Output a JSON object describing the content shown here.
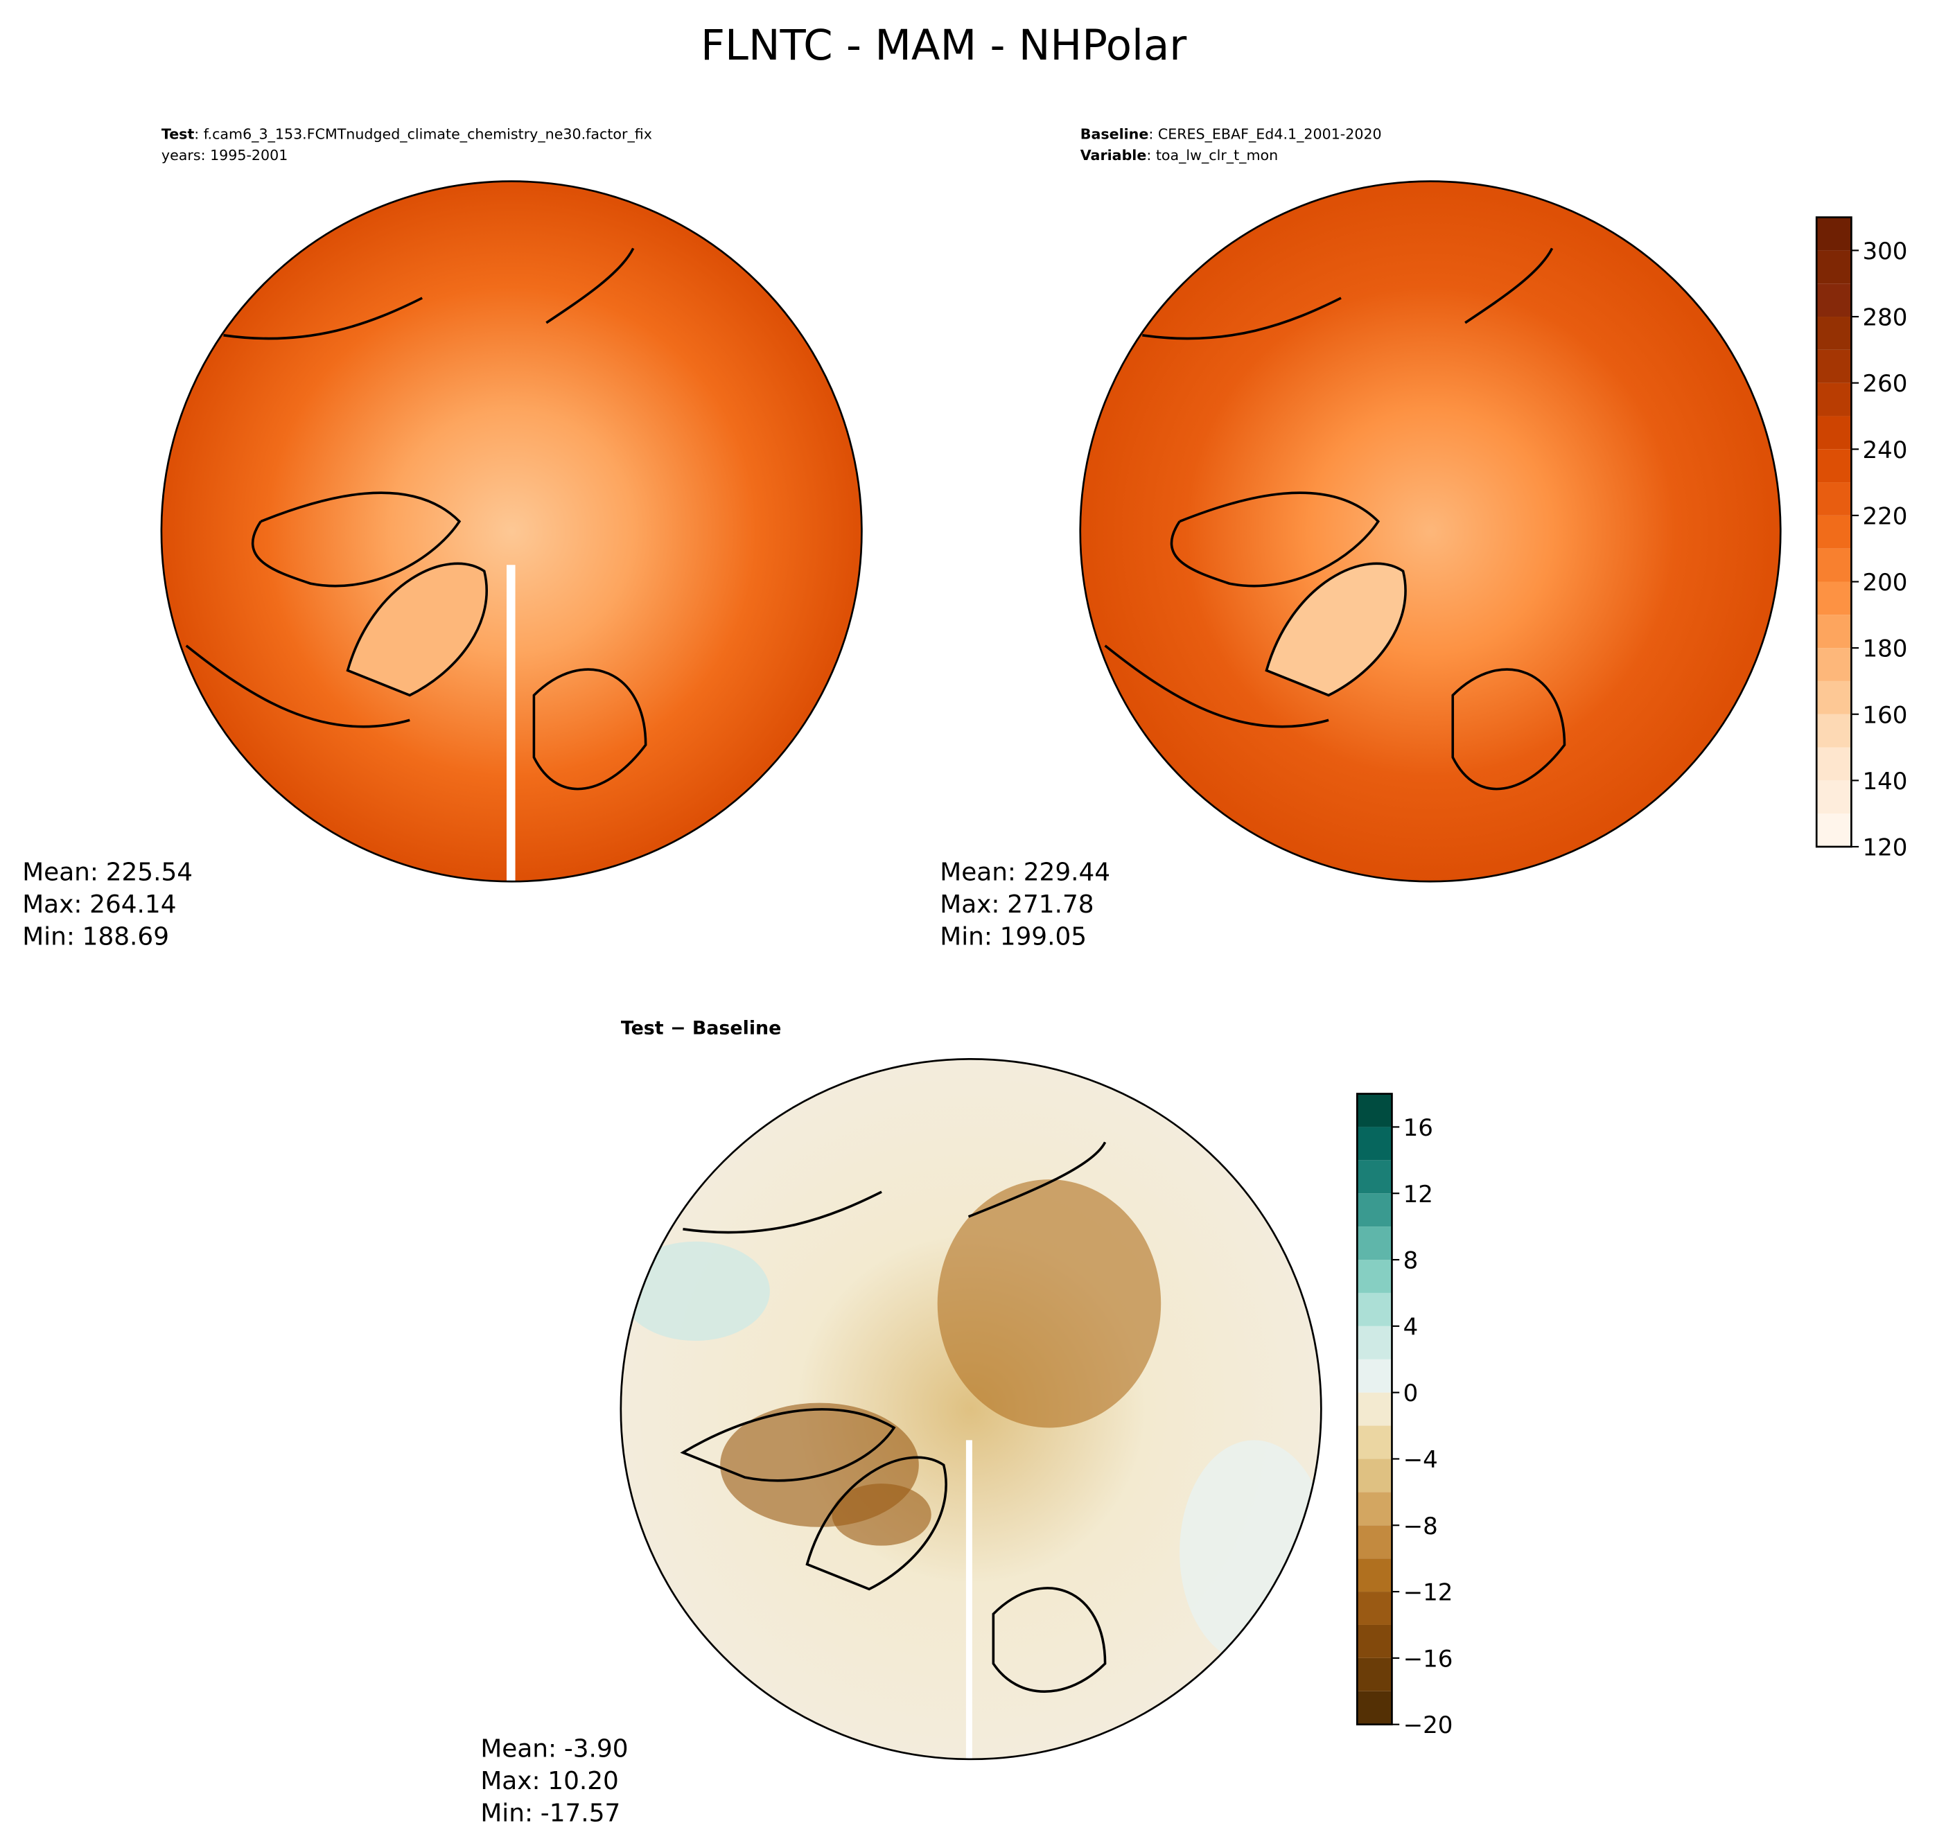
{
  "title": "FLNTC - MAM - NHPolar",
  "panels": [
    {
      "header": [
        {
          "bold": "Test",
          "text": ": f.cam6_3_153.FCMTnudged_climate_chemistry_ne30.factor_fix"
        },
        {
          "bold": null,
          "text": "years: 1995-2001"
        }
      ],
      "stats": [
        {
          "name": "Mean:",
          "value": "225.54"
        },
        {
          "name": "Max:",
          "value": "264.14"
        },
        {
          "name": "Min:",
          "value": "188.69"
        }
      ]
    },
    {
      "header": [
        {
          "bold": "Baseline",
          "text": ": CERES_EBAF_Ed4.1_2001-2020"
        },
        {
          "bold": "Variable",
          "text": ": toa_lw_clr_t_mon"
        }
      ],
      "stats": [
        {
          "name": "Mean:",
          "value": "229.44"
        },
        {
          "name": "Max:",
          "value": "271.78"
        },
        {
          "name": "Min:",
          "value": "199.05"
        }
      ]
    },
    {
      "header": [
        {
          "bold": "Test − Baseline",
          "text": null
        }
      ],
      "stats": [
        {
          "name": "Mean:",
          "value": "-3.90"
        },
        {
          "name": "Max:",
          "value": "10.20"
        },
        {
          "name": "Min:",
          "value": "-17.57"
        }
      ]
    }
  ],
  "colorbars": [
    {
      "levels": [
        120,
        130,
        140,
        150,
        160,
        170,
        180,
        190,
        200,
        210,
        220,
        230,
        240,
        250,
        260,
        270,
        280,
        290,
        300,
        310
      ],
      "colors": [
        "#fff5eb",
        "#feeddc",
        "#fee6ce",
        "#fdd9b4",
        "#fdc895",
        "#fdb77a",
        "#fda55e",
        "#fd9243",
        "#f8802f",
        "#f16c1a",
        "#e85d10",
        "#dd4f05",
        "#ce4401",
        "#b93d02",
        "#a53603",
        "#953103",
        "#86290a",
        "#7f2704",
        "#6f2003"
      ],
      "ticks": [
        120,
        140,
        160,
        180,
        200,
        220,
        240,
        260,
        280,
        300
      ]
    },
    {
      "levels": [
        -20,
        -18,
        -16,
        -14,
        -12,
        -10,
        -8,
        -6,
        -4,
        -2,
        0,
        2,
        4,
        6,
        8,
        10,
        12,
        14,
        16,
        18
      ],
      "colors": [
        "#543005",
        "#6b3d08",
        "#82490c",
        "#9a5a14",
        "#b0701f",
        "#c38a3f",
        "#d3a661",
        "#dfc182",
        "#ebd6a2",
        "#f3ead0",
        "#e8f2f0",
        "#cfeae5",
        "#acdfd6",
        "#86cfc2",
        "#5fb6aa",
        "#3a9a90",
        "#1b7f76",
        "#06665d",
        "#004c40"
      ],
      "ticks": [
        {
          "value": -20,
          "label": "−20"
        },
        {
          "value": -16,
          "label": "−16"
        },
        {
          "value": -12,
          "label": "−12"
        },
        {
          "value": -8,
          "label": "−8"
        },
        {
          "value": -4,
          "label": "−4"
        },
        0,
        4,
        8,
        12,
        16
      ]
    }
  ]
}
